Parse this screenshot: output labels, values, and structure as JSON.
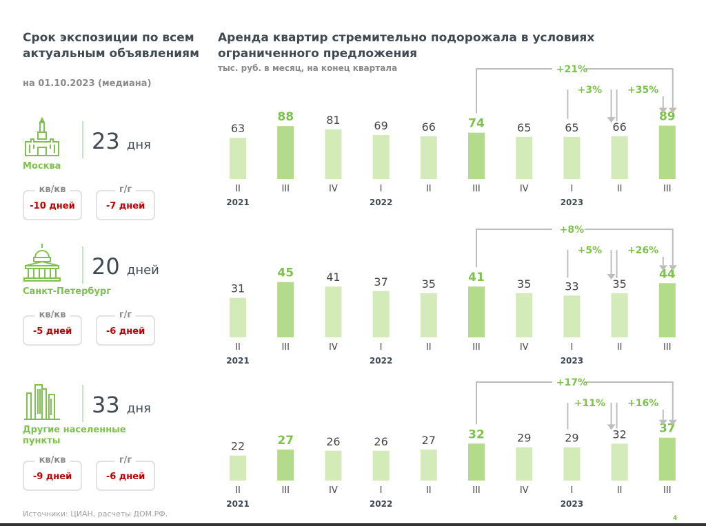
{
  "left": {
    "title": "Срок экспозиции по всем актуальным объявлениям",
    "subtitle": "на 01.10.2023 (медиана)",
    "cities": [
      {
        "icon": "kremlin-icon",
        "name": "Москва",
        "value": "23",
        "unit": "дня",
        "qoq_label": "кв/кв",
        "qoq": "-10 дней",
        "yoy_label": "г/г",
        "yoy": "-7 дней"
      },
      {
        "icon": "capitol-building-icon",
        "name": "Санкт-Петербург",
        "value": "20",
        "unit": "дней",
        "qoq_label": "кв/кв",
        "qoq": "-5 дней",
        "yoy_label": "г/г",
        "yoy": "-6 дней"
      },
      {
        "icon": "skyscrapers-icon",
        "name": "Другие населенные пункты",
        "value": "33",
        "unit": "дня",
        "qoq_label": "кв/кв",
        "qoq": "-9 дней",
        "yoy_label": "г/г",
        "yoy": "-6 дней"
      }
    ],
    "source": "Источники: ЦИАН, расчеты ДОМ.РФ.",
    "page_number": "4"
  },
  "colors": {
    "bar": "#d3eab9",
    "bar_highlight": "#b2db8a",
    "accent": "#7dc24b",
    "negative": "#c00000",
    "arrow": "#bdbdbd"
  },
  "chart_data": {
    "type": "bar",
    "title": "Аренда квартир стремительно подорожала в условиях ограниченного предложения",
    "subtitle": "тыс. руб. в месяц, на конец квартала",
    "categories": [
      "II",
      "III",
      "IV",
      "I",
      "II",
      "III",
      "IV",
      "I",
      "II",
      "III"
    ],
    "year_labels": [
      {
        "index": 0,
        "label": "2021"
      },
      {
        "index": 3,
        "label": "2022"
      },
      {
        "index": 7,
        "label": "2023"
      }
    ],
    "highlighted": [
      1,
      5,
      9
    ],
    "panels": [
      {
        "name": "Москва",
        "values": [
          63,
          88,
          81,
          69,
          66,
          74,
          65,
          65,
          66,
          89
        ],
        "annotations": {
          "yoy": "+21%",
          "qoq_prev": "+3%",
          "qoq": "+35%"
        }
      },
      {
        "name": "Санкт-Петербург",
        "values": [
          31,
          45,
          41,
          37,
          35,
          41,
          35,
          33,
          35,
          44
        ],
        "annotations": {
          "yoy": "+8%",
          "qoq_prev": "+5%",
          "qoq": "+26%"
        }
      },
      {
        "name": "Другие населенные пункты",
        "values": [
          22,
          27,
          26,
          26,
          27,
          32,
          29,
          29,
          32,
          37
        ],
        "annotations": {
          "yoy": "+17%",
          "qoq_prev": "+11%",
          "qoq": "+16%"
        }
      }
    ]
  }
}
